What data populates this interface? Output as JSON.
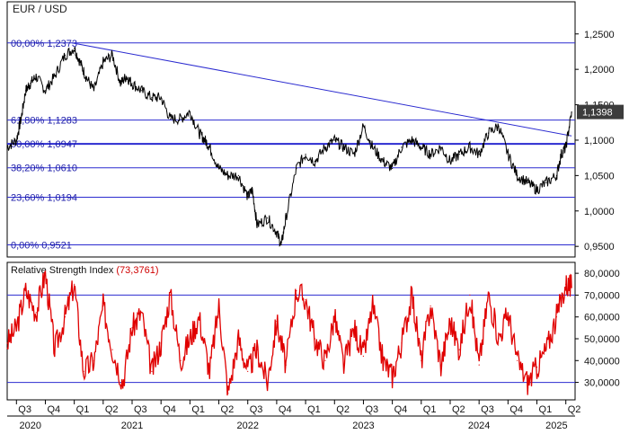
{
  "chart_data": [
    {
      "type": "line",
      "title": "EUR / USD",
      "y_ticks": [
        "1,2500",
        "1,2000",
        "1,1500",
        "1,1000",
        "1,0500",
        "1,0000",
        "0,9500"
      ],
      "ylim": [
        0.935,
        1.27
      ],
      "last_value_label": "1,1398",
      "last_value": 1.1398,
      "fib_levels": [
        {
          "label": "00,00% 1,2373",
          "value": 1.2373
        },
        {
          "label": "61,80% 1,1283",
          "value": 1.1283
        },
        {
          "label": "50,00% 1,0947",
          "value": 1.0947
        },
        {
          "label": "38,20% 1,0610",
          "value": 1.061
        },
        {
          "label": "23,60% 1,0194",
          "value": 1.0194
        },
        {
          "label": "0,00% 0,9521",
          "value": 0.9521
        }
      ],
      "trendline": [
        [
          2020.98,
          1.2373
        ],
        [
          2025.3,
          1.106
        ]
      ],
      "series": [
        {
          "x": [
            2020.42,
            2020.5,
            2020.54,
            2020.58,
            2020.62,
            2020.67,
            2020.75,
            2020.83,
            2020.92,
            2021.0,
            2021.05,
            2021.1,
            2021.17,
            2021.25,
            2021.33,
            2021.4,
            2021.45,
            2021.5,
            2021.58,
            2021.67,
            2021.75,
            2021.83,
            2021.92,
            2022.0,
            2022.08,
            2022.13,
            2022.17,
            2022.25,
            2022.33,
            2022.42,
            2022.5,
            2022.54,
            2022.58,
            2022.67,
            2022.75,
            2022.79,
            2022.83,
            2022.92,
            2023.0,
            2023.08,
            2023.17,
            2023.25,
            2023.33,
            2023.42,
            2023.5,
            2023.58,
            2023.67,
            2023.75,
            2023.83,
            2023.92,
            2024.0,
            2024.08,
            2024.17,
            2024.25,
            2024.33,
            2024.42,
            2024.5,
            2024.58,
            2024.67,
            2024.75,
            2024.83,
            2024.92,
            2025.0,
            2025.08,
            2025.17,
            2025.21,
            2025.25,
            2025.3
          ],
          "y": [
            1.09,
            1.1,
            1.13,
            1.17,
            1.18,
            1.19,
            1.17,
            1.19,
            1.22,
            1.23,
            1.21,
            1.19,
            1.17,
            1.21,
            1.22,
            1.18,
            1.19,
            1.18,
            1.17,
            1.16,
            1.16,
            1.13,
            1.13,
            1.14,
            1.11,
            1.1,
            1.09,
            1.06,
            1.05,
            1.05,
            1.02,
            1.03,
            0.98,
            0.99,
            0.97,
            0.9521,
            0.99,
            1.06,
            1.08,
            1.07,
            1.09,
            1.1,
            1.09,
            1.08,
            1.12,
            1.09,
            1.07,
            1.06,
            1.09,
            1.1,
            1.09,
            1.08,
            1.09,
            1.07,
            1.08,
            1.09,
            1.08,
            1.11,
            1.12,
            1.08,
            1.05,
            1.04,
            1.03,
            1.04,
            1.05,
            1.08,
            1.09,
            1.1398
          ]
        }
      ]
    },
    {
      "type": "line",
      "title": "Relative Strength Index",
      "value_label": "(73,3761)",
      "y_ticks": [
        "80,0000",
        "70,0000",
        "60,0000",
        "50,0000",
        "40,0000",
        "30,0000"
      ],
      "ylim": [
        22,
        85
      ],
      "reference_lines": [
        70,
        30
      ],
      "series": [
        {
          "x": [
            2020.42,
            2020.5,
            2020.58,
            2020.67,
            2020.75,
            2020.83,
            2020.92,
            2021.0,
            2021.08,
            2021.17,
            2021.25,
            2021.33,
            2021.42,
            2021.5,
            2021.58,
            2021.67,
            2021.75,
            2021.83,
            2021.92,
            2022.0,
            2022.08,
            2022.17,
            2022.25,
            2022.33,
            2022.42,
            2022.5,
            2022.58,
            2022.67,
            2022.75,
            2022.83,
            2022.92,
            2023.0,
            2023.08,
            2023.17,
            2023.25,
            2023.33,
            2023.42,
            2023.5,
            2023.58,
            2023.67,
            2023.75,
            2023.83,
            2023.92,
            2024.0,
            2024.08,
            2024.17,
            2024.25,
            2024.33,
            2024.42,
            2024.5,
            2024.58,
            2024.67,
            2024.75,
            2024.83,
            2024.92,
            2025.0,
            2025.08,
            2025.17,
            2025.25,
            2025.3
          ],
          "y": [
            48,
            55,
            72,
            62,
            80,
            45,
            60,
            75,
            35,
            40,
            65,
            45,
            30,
            55,
            62,
            35,
            48,
            70,
            40,
            50,
            60,
            35,
            65,
            25,
            50,
            35,
            45,
            30,
            58,
            38,
            72,
            68,
            50,
            40,
            60,
            38,
            55,
            42,
            65,
            40,
            33,
            48,
            70,
            40,
            65,
            38,
            58,
            45,
            70,
            38,
            70,
            50,
            62,
            40,
            30,
            37,
            45,
            60,
            75,
            73.3761
          ]
        }
      ]
    },
    {
      "type": "axis",
      "x_ticks": [
        {
          "label": "Q3",
          "x": 2020.5
        },
        {
          "label": "Q4",
          "x": 2020.75
        },
        {
          "label": "Q1",
          "x": 2021.0
        },
        {
          "label": "Q2",
          "x": 2021.25
        },
        {
          "label": "Q3",
          "x": 2021.5
        },
        {
          "label": "Q4",
          "x": 2021.75
        },
        {
          "label": "Q1",
          "x": 2022.0
        },
        {
          "label": "Q2",
          "x": 2022.25
        },
        {
          "label": "Q3",
          "x": 2022.5
        },
        {
          "label": "Q4",
          "x": 2022.75
        },
        {
          "label": "Q1",
          "x": 2023.0
        },
        {
          "label": "Q2",
          "x": 2023.25
        },
        {
          "label": "Q3",
          "x": 2023.5
        },
        {
          "label": "Q4",
          "x": 2023.75
        },
        {
          "label": "Q1",
          "x": 2024.0
        },
        {
          "label": "Q2",
          "x": 2024.25
        },
        {
          "label": "Q3",
          "x": 2024.5
        },
        {
          "label": "Q4",
          "x": 2024.75
        },
        {
          "label": "Q1",
          "x": 2025.0
        },
        {
          "label": "Q2",
          "x": 2025.25
        }
      ],
      "years": [
        {
          "label": "2020",
          "x": 2020.62
        },
        {
          "label": "2021",
          "x": 2021.5
        },
        {
          "label": "2022",
          "x": 2022.5
        },
        {
          "label": "2023",
          "x": 2023.5
        },
        {
          "label": "2024",
          "x": 2024.5
        },
        {
          "label": "2025",
          "x": 2025.17
        }
      ],
      "xlim": [
        2020.42,
        2025.33
      ]
    }
  ],
  "colors": {
    "price": "#000000",
    "rsi": "#e00000",
    "lines": "#2b2bd0",
    "label_blue": "#1a1aa8",
    "value_red": "#d00000",
    "frame": "#000000",
    "badge": "#3c3c3c"
  }
}
